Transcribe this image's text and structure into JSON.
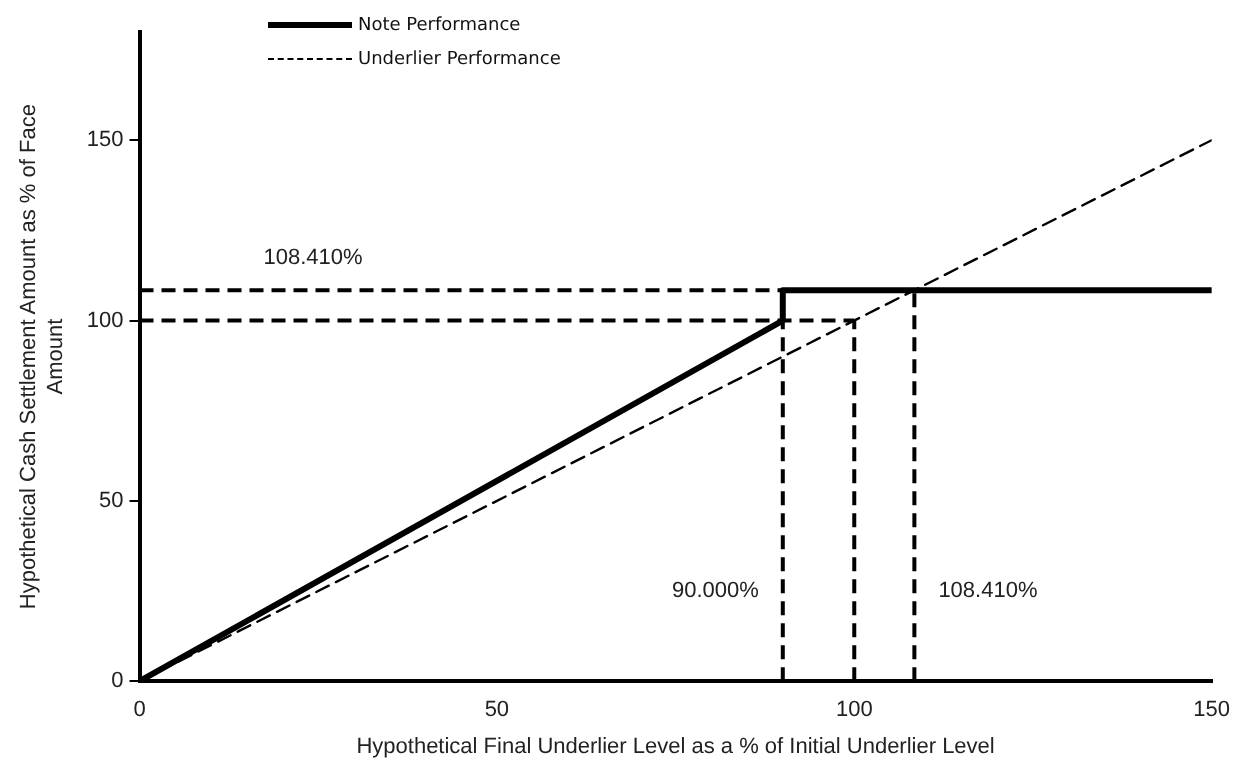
{
  "chart_data": {
    "type": "line",
    "xlabel": "Hypothetical Final Underlier Level as a % of Initial Underlier Level",
    "ylabel": "Hypothetical Cash Settlement Amount as % of Face Amount",
    "xlim": [
      0,
      150
    ],
    "xticks": [
      0,
      50,
      100,
      150
    ],
    "ylim": [
      0,
      180
    ],
    "yticks": [
      0,
      50,
      100,
      150
    ],
    "grid": false,
    "legend": "top left",
    "marker": "none",
    "series": [
      {
        "name": "Note Performance",
        "color": "#000000",
        "line_style": "solid",
        "x": [
          0,
          90,
          90,
          150
        ],
        "values": [
          0,
          100,
          108.41,
          108.41
        ]
      },
      {
        "name": "Underlier Performance",
        "color": "#000000",
        "line_style": "dashed",
        "x": [
          0,
          150
        ],
        "values": [
          0,
          150
        ]
      }
    ],
    "ref_lines": [
      {
        "axis": "y",
        "value": 108.41,
        "label": "108.410%",
        "line_style": "dashed",
        "color": "#000000"
      },
      {
        "axis": "y",
        "value": 100,
        "line_style": "dashed",
        "color": "#000000"
      },
      {
        "axis": "x",
        "value": 90,
        "label": "90.000%",
        "line_style": "dashed",
        "color": "#000000"
      },
      {
        "axis": "x",
        "value": 100,
        "line_style": "dashed",
        "color": "#000000"
      },
      {
        "axis": "x",
        "value": 108.41,
        "label": "108.410%",
        "line_style": "dashed",
        "color": "#000000"
      }
    ]
  }
}
